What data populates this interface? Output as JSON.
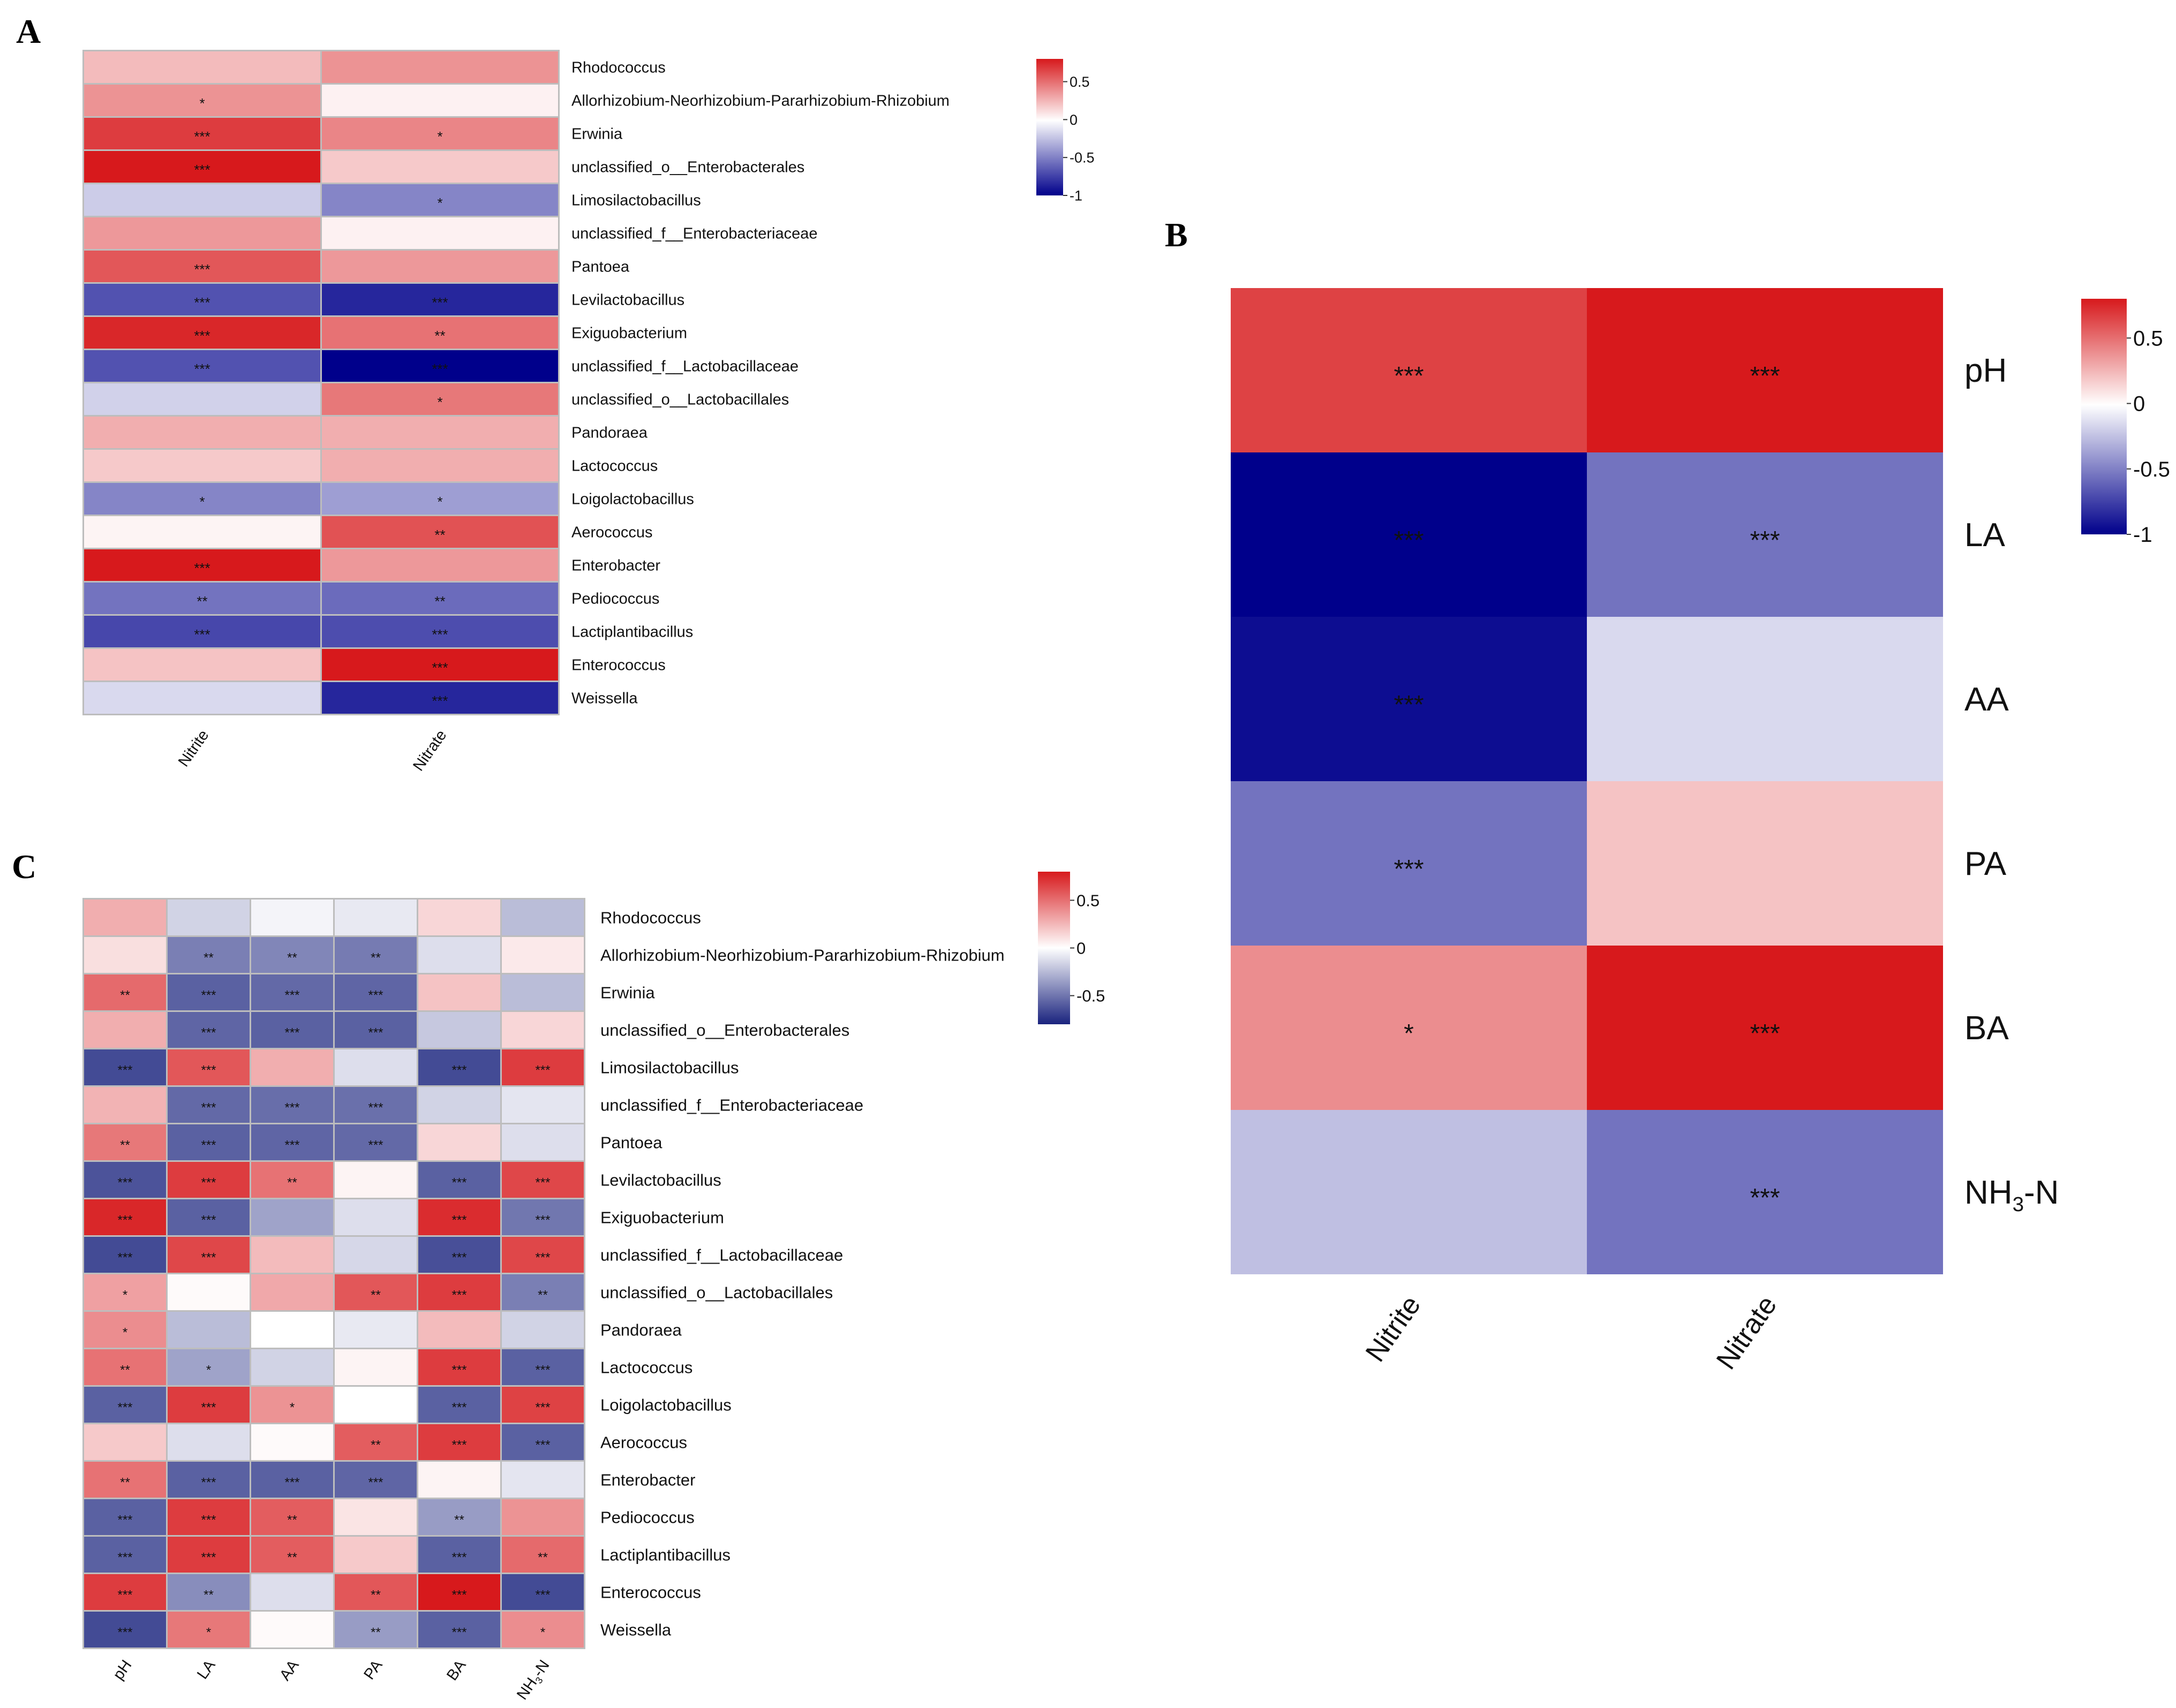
{
  "panels": [
    {
      "id": "A",
      "letter": "A",
      "rows": [
        "Rhodococcus",
        "Allorhizobium-Neorhizobium-Pararhizobium-Rhizobium",
        "Erwinia",
        "unclassified_o__Enterobacterales",
        "Limosilactobacillus",
        "unclassified_f__Enterobacteriaceae",
        "Pantoea",
        "Levilactobacillus",
        "Exiguobacterium",
        "unclassified_f__Lactobacillaceae",
        "unclassified_o__Lactobacillales",
        "Pandoraea",
        "Lactococcus",
        "Loigolactobacillus",
        "Aerococcus",
        "Enterobacter",
        "Pediococcus",
        "Lactiplantibacillus",
        "Enterococcus",
        "Weissella"
      ],
      "columns": [
        "Nitrite",
        "Nitrate"
      ],
      "values": [
        [
          0.25,
          0.4
        ],
        [
          0.4,
          0.05
        ],
        [
          0.72,
          0.45
        ],
        [
          0.88,
          0.2
        ],
        [
          -0.2,
          -0.48
        ],
        [
          0.38,
          0.05
        ],
        [
          0.62,
          0.38
        ],
        [
          -0.68,
          -0.85
        ],
        [
          0.8,
          0.52
        ],
        [
          -0.68,
          -1.0
        ],
        [
          -0.18,
          0.5
        ],
        [
          0.3,
          0.3
        ],
        [
          0.2,
          0.3
        ],
        [
          -0.48,
          -0.38
        ],
        [
          0.04,
          0.64
        ],
        [
          0.9,
          0.38
        ],
        [
          -0.55,
          -0.58
        ],
        [
          -0.72,
          -0.7
        ],
        [
          0.22,
          0.88
        ],
        [
          -0.15,
          -0.85
        ]
      ],
      "stars": [
        [
          "",
          ""
        ],
        [
          "*",
          ""
        ],
        [
          "***",
          "*"
        ],
        [
          "***",
          ""
        ],
        [
          "",
          "*"
        ],
        [
          "",
          ""
        ],
        [
          "***",
          ""
        ],
        [
          "***",
          "***"
        ],
        [
          "***",
          "**"
        ],
        [
          "***",
          "***"
        ],
        [
          "",
          "*"
        ],
        [
          "",
          ""
        ],
        [
          "",
          ""
        ],
        [
          "*",
          "*"
        ],
        [
          "",
          "**"
        ],
        [
          "***",
          ""
        ],
        [
          "**",
          "**"
        ],
        [
          "***",
          "***"
        ],
        [
          "",
          "***"
        ],
        [
          "",
          "***"
        ]
      ],
      "legend_ticks": [
        "0.5",
        "0",
        "-0.5",
        "-1"
      ]
    },
    {
      "id": "B",
      "letter": "B",
      "rows": [
        "pH",
        "LA",
        "AA",
        "PA",
        "BA",
        "NH3-N"
      ],
      "columns": [
        "Nitrite",
        "Nitrate"
      ],
      "values": [
        [
          0.7,
          0.92
        ],
        [
          -1.0,
          -0.55
        ],
        [
          -0.95,
          -0.15
        ],
        [
          -0.55,
          0.22
        ],
        [
          0.42,
          0.92
        ],
        [
          -0.25,
          -0.55
        ]
      ],
      "stars": [
        [
          "***",
          "***"
        ],
        [
          "***",
          "***"
        ],
        [
          "***",
          ""
        ],
        [
          "***",
          ""
        ],
        [
          "*",
          "***"
        ],
        [
          "",
          "***"
        ]
      ],
      "legend_ticks": [
        "0.5",
        "0",
        "-0.5",
        "-1"
      ]
    },
    {
      "id": "C",
      "letter": "C",
      "rows": [
        "Rhodococcus",
        "Allorhizobium-Neorhizobium-Pararhizobium-Rhizobium",
        "Erwinia",
        "unclassified_o__Enterobacterales",
        "Limosilactobacillus",
        "unclassified_f__Enterobacteriaceae",
        "Pantoea",
        "Levilactobacillus",
        "Exiguobacterium",
        "unclassified_f__Lactobacillaceae",
        "unclassified_o__Lactobacillales",
        "Pandoraea",
        "Lactococcus",
        "Loigolactobacillus",
        "Aerococcus",
        "Enterobacter",
        "Pediococcus",
        "Lactiplantibacillus",
        "Enterococcus",
        "Weissella"
      ],
      "columns": [
        "pH",
        "LA",
        "AA",
        "PA",
        "BA",
        "NH3-N"
      ],
      "values": [
        [
          0.3,
          -0.2,
          -0.05,
          -0.1,
          0.15,
          -0.3
        ],
        [
          0.12,
          -0.58,
          -0.55,
          -0.6,
          -0.15,
          0.08
        ],
        [
          0.55,
          -0.72,
          -0.68,
          -0.7,
          0.22,
          -0.3
        ],
        [
          0.3,
          -0.7,
          -0.72,
          -0.72,
          -0.25,
          0.15
        ],
        [
          -0.82,
          0.62,
          0.3,
          -0.15,
          -0.82,
          0.72
        ],
        [
          0.28,
          -0.68,
          -0.66,
          -0.65,
          -0.2,
          -0.12
        ],
        [
          0.5,
          -0.72,
          -0.7,
          -0.68,
          0.15,
          -0.15
        ],
        [
          -0.78,
          0.72,
          0.52,
          0.04,
          -0.72,
          0.68
        ],
        [
          0.8,
          -0.72,
          -0.42,
          -0.15,
          0.78,
          -0.62
        ],
        [
          -0.82,
          0.68,
          0.25,
          -0.18,
          -0.8,
          0.68
        ],
        [
          0.35,
          0.02,
          0.32,
          0.62,
          0.72,
          -0.58
        ],
        [
          0.42,
          -0.3,
          0.0,
          -0.1,
          0.25,
          -0.2
        ],
        [
          0.52,
          -0.42,
          -0.2,
          0.04,
          0.72,
          -0.72
        ],
        [
          -0.72,
          0.72,
          0.4,
          0.0,
          -0.72,
          0.7
        ],
        [
          0.2,
          -0.15,
          0.02,
          0.6,
          0.72,
          -0.72
        ],
        [
          0.52,
          -0.72,
          -0.72,
          -0.7,
          0.04,
          -0.12
        ],
        [
          -0.72,
          0.72,
          0.6,
          0.1,
          -0.45,
          0.4
        ],
        [
          -0.72,
          0.72,
          0.6,
          0.2,
          -0.72,
          0.55
        ],
        [
          0.72,
          -0.52,
          -0.15,
          0.62,
          0.88,
          -0.82
        ],
        [
          -0.82,
          0.5,
          0.02,
          -0.45,
          -0.72,
          0.42
        ]
      ],
      "stars": [
        [
          "",
          "",
          "",
          "",
          "",
          ""
        ],
        [
          "",
          "**",
          "**",
          "**",
          "",
          ""
        ],
        [
          "**",
          "***",
          "***",
          "***",
          "",
          ""
        ],
        [
          "",
          "***",
          "***",
          "***",
          "",
          ""
        ],
        [
          "***",
          "***",
          "",
          "",
          "***",
          "***"
        ],
        [
          "",
          "***",
          "***",
          "***",
          "",
          ""
        ],
        [
          "**",
          "***",
          "***",
          "***",
          "",
          ""
        ],
        [
          "***",
          "***",
          "**",
          "",
          "***",
          "***"
        ],
        [
          "***",
          "***",
          "",
          "",
          "***",
          "***"
        ],
        [
          "***",
          "***",
          "",
          "",
          "***",
          "***"
        ],
        [
          "*",
          "",
          "",
          "**",
          "***",
          "**"
        ],
        [
          "*",
          "",
          "",
          "",
          "",
          ""
        ],
        [
          "**",
          "*",
          "",
          "",
          "***",
          "***"
        ],
        [
          "***",
          "***",
          "*",
          "",
          "***",
          "***"
        ],
        [
          "",
          "",
          "",
          "**",
          "***",
          "***"
        ],
        [
          "**",
          "***",
          "***",
          "***",
          "",
          ""
        ],
        [
          "***",
          "***",
          "**",
          "",
          "**",
          ""
        ],
        [
          "***",
          "***",
          "**",
          "",
          "***",
          "**"
        ],
        [
          "***",
          "**",
          "",
          "**",
          "***",
          "***"
        ],
        [
          "***",
          "*",
          "",
          "**",
          "***",
          "*"
        ]
      ],
      "legend_ticks": [
        "0.5",
        "0",
        "-0.5"
      ]
    }
  ],
  "chart_data": [
    {
      "type": "heatmap",
      "title": "A",
      "x": [
        "Nitrite",
        "Nitrate"
      ],
      "y": [
        "Rhodococcus",
        "Allorhizobium-Neorhizobium-Pararhizobium-Rhizobium",
        "Erwinia",
        "unclassified_o__Enterobacterales",
        "Limosilactobacillus",
        "unclassified_f__Enterobacteriaceae",
        "Pantoea",
        "Levilactobacillus",
        "Exiguobacterium",
        "unclassified_f__Lactobacillaceae",
        "unclassified_o__Lactobacillales",
        "Pandoraea",
        "Lactococcus",
        "Loigolactobacillus",
        "Aerococcus",
        "Enterobacter",
        "Pediococcus",
        "Lactiplantibacillus",
        "Enterococcus",
        "Weissella"
      ],
      "color_range": [
        -1,
        0.8
      ],
      "colorbar_ticks": [
        0.5,
        0,
        -0.5,
        -1
      ],
      "legend": "top-right"
    },
    {
      "type": "heatmap",
      "title": "B",
      "x": [
        "Nitrite",
        "Nitrate"
      ],
      "y": [
        "pH",
        "LA",
        "AA",
        "PA",
        "BA",
        "NH3-N"
      ],
      "color_range": [
        -1,
        0.8
      ],
      "colorbar_ticks": [
        0.5,
        0,
        -0.5,
        -1
      ],
      "legend": "top-right"
    },
    {
      "type": "heatmap",
      "title": "C",
      "x": [
        "pH",
        "LA",
        "AA",
        "PA",
        "BA",
        "NH3-N"
      ],
      "y": [
        "Rhodococcus",
        "Allorhizobium-Neorhizobium-Pararhizobium-Rhizobium",
        "Erwinia",
        "unclassified_o__Enterobacterales",
        "Limosilactobacillus",
        "unclassified_f__Enterobacteriaceae",
        "Pantoea",
        "Levilactobacillus",
        "Exiguobacterium",
        "unclassified_f__Lactobacillaceae",
        "unclassified_o__Lactobacillales",
        "Pandoraea",
        "Lactococcus",
        "Loigolactobacillus",
        "Aerococcus",
        "Enterobacter",
        "Pediococcus",
        "Lactiplantibacillus",
        "Enterococcus",
        "Weissella"
      ],
      "color_range": [
        -0.8,
        0.8
      ],
      "colorbar_ticks": [
        0.5,
        0,
        -0.5
      ],
      "legend": "top-right"
    }
  ]
}
